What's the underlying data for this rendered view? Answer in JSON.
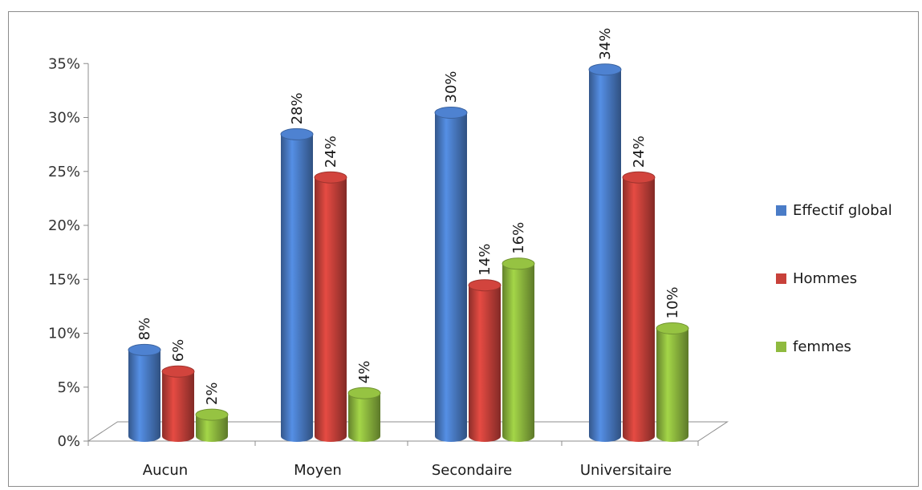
{
  "chart_data": {
    "type": "bar",
    "categories": [
      "Aucun",
      "Moyen",
      "Secondaire",
      "Universitaire"
    ],
    "series": [
      {
        "name": "Effectif global",
        "values": [
          8,
          28,
          30,
          34
        ],
        "color": "#4a7cc7"
      },
      {
        "name": "Hommes",
        "values": [
          6,
          24,
          14,
          24
        ],
        "color": "#c8413a"
      },
      {
        "name": "femmes",
        "values": [
          2,
          4,
          16,
          10
        ],
        "color": "#8fba3f"
      }
    ],
    "value_suffix": "%",
    "yticks": [
      "0%",
      "5%",
      "10%",
      "15%",
      "20%",
      "25%",
      "30%",
      "35%"
    ],
    "ylim": [
      0,
      35
    ],
    "legend_position": "right",
    "style": "3d-cylinder"
  }
}
